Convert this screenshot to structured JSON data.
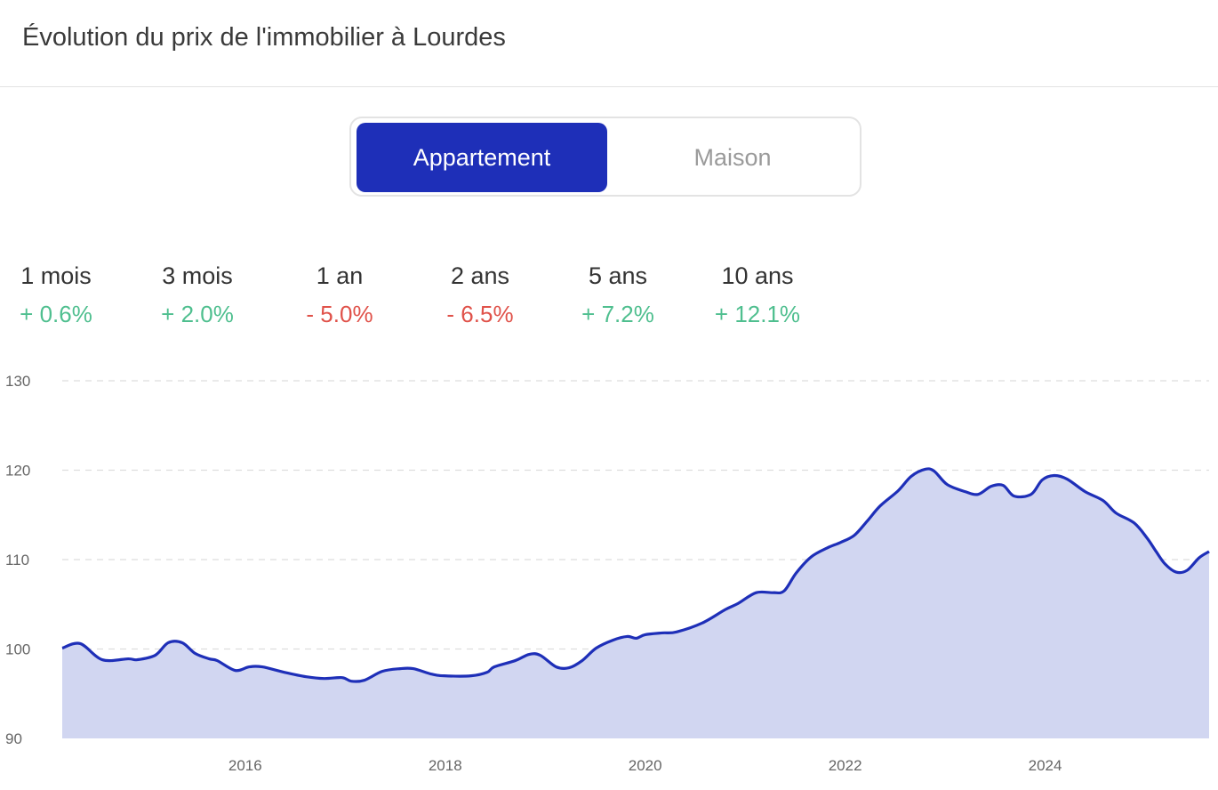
{
  "header": {
    "title": "Évolution du prix de l'immobilier à Lourdes"
  },
  "toggle": {
    "options": [
      "Appartement",
      "Maison"
    ],
    "selected": "Appartement"
  },
  "stats": [
    {
      "label": "1 mois",
      "value": "+ 0.6%",
      "trend": "up"
    },
    {
      "label": "3 mois",
      "value": "+ 2.0%",
      "trend": "up"
    },
    {
      "label": "1 an",
      "value": "- 5.0%",
      "trend": "down"
    },
    {
      "label": "2 ans",
      "value": "- 6.5%",
      "trend": "down"
    },
    {
      "label": "5 ans",
      "value": "+ 7.2%",
      "trend": "up"
    },
    {
      "label": "10 ans",
      "value": "+ 12.1%",
      "trend": "up"
    }
  ],
  "colors": {
    "accent": "#1e2fb8",
    "area": "#d1d6f1",
    "up": "#4fbf8f",
    "down": "#e0524a"
  },
  "chart_data": {
    "type": "area",
    "title": "",
    "xlabel": "",
    "ylabel": "",
    "xlim": [
      2014.17,
      2025.64
    ],
    "ylim": [
      90,
      130
    ],
    "yticks": [
      90,
      100,
      110,
      120,
      130
    ],
    "xticks": [
      2016,
      2018,
      2020,
      2022,
      2024
    ],
    "grid": true,
    "x": [
      2014.17,
      2014.35,
      2014.57,
      2014.83,
      2014.92,
      2015.1,
      2015.23,
      2015.37,
      2015.5,
      2015.64,
      2015.72,
      2015.9,
      2016.04,
      2016.17,
      2016.39,
      2016.61,
      2016.79,
      2016.97,
      2017.06,
      2017.19,
      2017.37,
      2017.55,
      2017.68,
      2017.86,
      2017.99,
      2018.26,
      2018.42,
      2018.49,
      2018.7,
      2018.84,
      2018.95,
      2019.11,
      2019.24,
      2019.37,
      2019.51,
      2019.68,
      2019.82,
      2019.91,
      2020.0,
      2020.17,
      2020.31,
      2020.57,
      2020.8,
      2020.93,
      2021.11,
      2021.28,
      2021.39,
      2021.51,
      2021.66,
      2021.82,
      2021.95,
      2022.09,
      2022.22,
      2022.35,
      2022.53,
      2022.66,
      2022.8,
      2022.89,
      2023.02,
      2023.2,
      2023.33,
      2023.46,
      2023.58,
      2023.69,
      2023.86,
      2023.97,
      2024.09,
      2024.22,
      2024.4,
      2024.58,
      2024.71,
      2024.89,
      2025.02,
      2025.11,
      2025.2,
      2025.31,
      2025.42,
      2025.54,
      2025.64
    ],
    "values": [
      100.1,
      100.6,
      98.8,
      98.9,
      98.8,
      99.3,
      100.7,
      100.7,
      99.5,
      98.9,
      98.7,
      97.6,
      98.0,
      98.0,
      97.4,
      96.9,
      96.7,
      96.8,
      96.4,
      96.5,
      97.5,
      97.8,
      97.8,
      97.2,
      97.0,
      97.0,
      97.4,
      98.0,
      98.7,
      99.4,
      99.3,
      98.0,
      97.9,
      98.7,
      100.1,
      101.0,
      101.4,
      101.2,
      101.6,
      101.8,
      101.9,
      102.9,
      104.4,
      105.1,
      106.3,
      106.3,
      106.5,
      108.5,
      110.3,
      111.3,
      111.9,
      112.7,
      114.3,
      116.0,
      117.7,
      119.3,
      120.1,
      119.9,
      118.4,
      117.6,
      117.3,
      118.2,
      118.3,
      117.1,
      117.3,
      118.9,
      119.4,
      119.0,
      117.6,
      116.6,
      115.2,
      114.1,
      112.4,
      110.9,
      109.5,
      108.6,
      108.8,
      110.2,
      110.9
    ]
  }
}
